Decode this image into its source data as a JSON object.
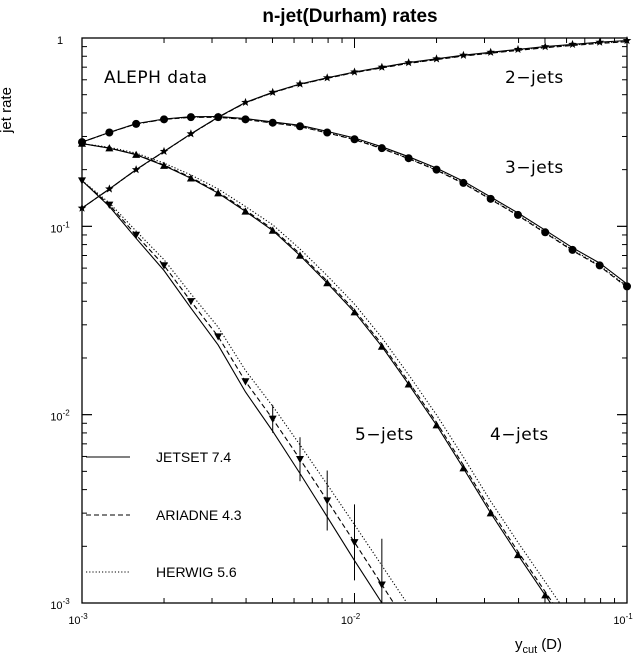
{
  "chart_data": {
    "type": "line",
    "title": "n-jet(Durham) rates",
    "ylabel": "jet rate",
    "xlabel_main": "y",
    "xlabel_sub": "cut",
    "xlabel_suffix": "(D)",
    "xscale": "log",
    "yscale": "log",
    "xlim": [
      0.001,
      0.1
    ],
    "ylim": [
      0.001,
      1
    ],
    "x_ticks": [
      {
        "base": "10",
        "exp": "-3"
      },
      {
        "base": "10",
        "exp": "-2"
      },
      {
        "base": "10",
        "exp": "-1"
      }
    ],
    "y_ticks": [
      {
        "base": "10",
        "exp": "-3"
      },
      {
        "base": "10",
        "exp": "-2"
      },
      {
        "base": "10",
        "exp": "-1"
      },
      {
        "base": "1",
        "exp": ""
      }
    ],
    "data_label": "ALEPH data",
    "series_labels": [
      "2−jets",
      "3−jets",
      "4−jets",
      "5−jets"
    ],
    "legend": [
      {
        "name": "JETSET 7.4",
        "style": "solid"
      },
      {
        "name": "ARIADNE 4.3",
        "style": "dashed"
      },
      {
        "name": "HERWIG 5.6",
        "style": "dotted"
      }
    ],
    "data": [
      {
        "name": "2−jets",
        "marker": "star",
        "x": [
          0.001,
          0.00126,
          0.00158,
          0.002,
          0.00251,
          0.00316,
          0.00398,
          0.00501,
          0.00631,
          0.00794,
          0.01,
          0.0126,
          0.0158,
          0.02,
          0.0251,
          0.0316,
          0.0398,
          0.0501,
          0.0631,
          0.0794,
          0.1
        ],
        "y": [
          0.125,
          0.158,
          0.2,
          0.25,
          0.31,
          0.38,
          0.455,
          0.515,
          0.57,
          0.615,
          0.66,
          0.7,
          0.74,
          0.775,
          0.81,
          0.84,
          0.87,
          0.9,
          0.925,
          0.95,
          0.97
        ]
      },
      {
        "name": "3−jets",
        "marker": "circle",
        "x": [
          0.001,
          0.00126,
          0.00158,
          0.002,
          0.00251,
          0.00316,
          0.00398,
          0.00501,
          0.00631,
          0.00794,
          0.01,
          0.0126,
          0.0158,
          0.02,
          0.0251,
          0.0316,
          0.0398,
          0.0501,
          0.0631,
          0.0794,
          0.1
        ],
        "y": [
          0.28,
          0.315,
          0.35,
          0.37,
          0.38,
          0.38,
          0.37,
          0.355,
          0.34,
          0.315,
          0.29,
          0.26,
          0.23,
          0.2,
          0.17,
          0.14,
          0.115,
          0.093,
          0.075,
          0.062,
          0.048
        ]
      },
      {
        "name": "4−jets",
        "marker": "triangle-up",
        "x": [
          0.001,
          0.00126,
          0.00158,
          0.002,
          0.00251,
          0.00316,
          0.00398,
          0.00501,
          0.00631,
          0.00794,
          0.01,
          0.0126,
          0.0158,
          0.02,
          0.0251,
          0.0316,
          0.0398,
          0.0501
        ],
        "y": [
          0.275,
          0.26,
          0.24,
          0.21,
          0.18,
          0.15,
          0.12,
          0.095,
          0.07,
          0.05,
          0.035,
          0.023,
          0.0145,
          0.0088,
          0.0052,
          0.003,
          0.0018,
          0.0011
        ]
      },
      {
        "name": "5−jets",
        "marker": "triangle-down",
        "x": [
          0.001,
          0.00126,
          0.00158,
          0.002,
          0.00251,
          0.00316,
          0.00398,
          0.00501,
          0.00631,
          0.00794,
          0.01,
          0.0126
        ],
        "y": [
          0.175,
          0.13,
          0.09,
          0.062,
          0.04,
          0.026,
          0.015,
          0.0095,
          0.0058,
          0.0035,
          0.0021,
          0.00125
        ]
      }
    ]
  }
}
